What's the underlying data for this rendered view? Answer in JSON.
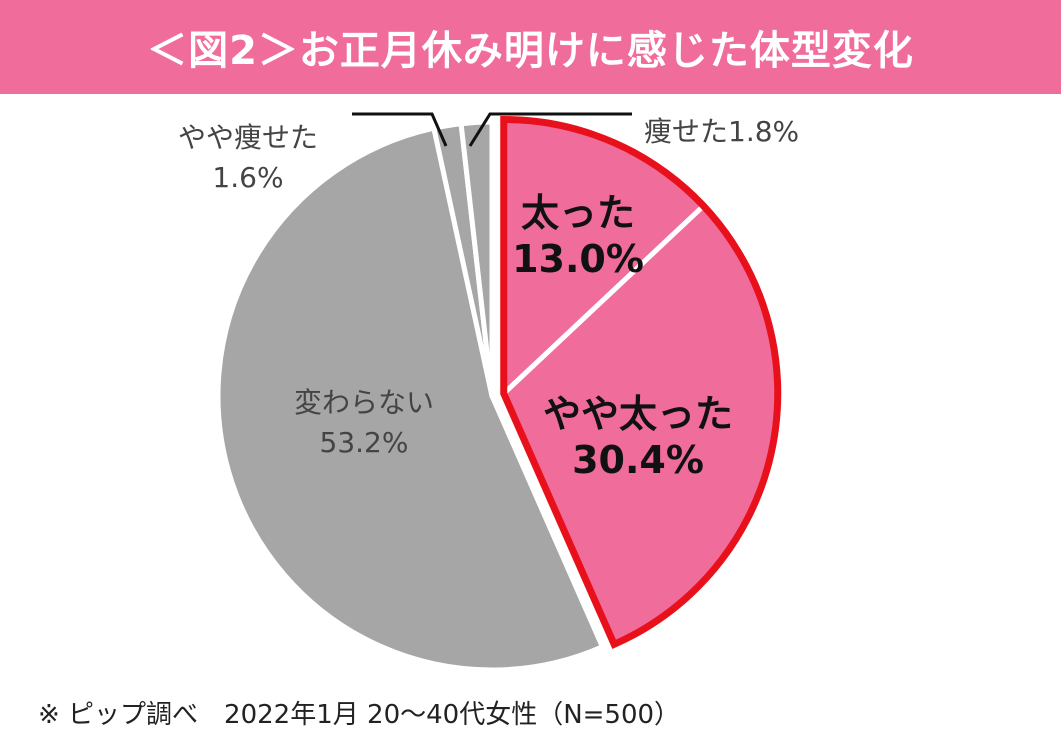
{
  "header": {
    "title": "＜図2＞お正月休み明けに感じた体型変化"
  },
  "colors": {
    "header_bg": "#f06c9b",
    "fat_slice": "#f06c9b",
    "thin_slice": "#a6a6a6",
    "highlight_border": "#e8101a"
  },
  "chart_data": {
    "type": "pie",
    "title": "＜図2＞お正月休み明けに感じた体型変化",
    "slices": [
      {
        "label": "太った",
        "value": 13.0,
        "value_label": "13.0%",
        "color": "#f06c9b",
        "highlight": true
      },
      {
        "label": "やや太った",
        "value": 30.4,
        "value_label": "30.4%",
        "color": "#f06c9b",
        "highlight": true
      },
      {
        "label": "変わらない",
        "value": 53.2,
        "value_label": "53.2%",
        "color": "#a6a6a6",
        "highlight": false
      },
      {
        "label": "やや痩せた",
        "value": 1.6,
        "value_label": "1.6%",
        "color": "#a6a6a6",
        "highlight": false
      },
      {
        "label": "痩せた",
        "value": 1.8,
        "value_label": "1.8%",
        "color": "#a6a6a6",
        "highlight": false
      }
    ]
  },
  "footnote": "※ ピップ調べ　2022年1月 20〜40代女性（N=500）"
}
